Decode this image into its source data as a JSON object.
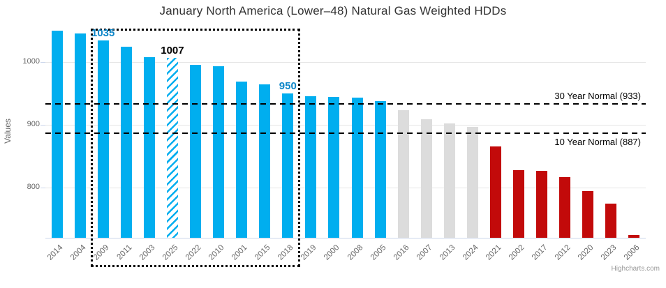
{
  "title": "January North America (Lower–48) Natural Gas Weighted HDDs",
  "credits_label": "Highcharts.com",
  "colors": {
    "bar_blue": "#00aeef",
    "bar_gray": "#dcdcdc",
    "bar_red": "#c20a0a",
    "label_blue": "#0d86c8",
    "label_black": "#000000",
    "gridline": "#e6e6e6",
    "axis_line": "#ccd6eb",
    "plot_line": "#000000"
  },
  "chart_data": {
    "type": "bar",
    "title": "January North America (Lower–48) Natural Gas Weighted HDDs",
    "xlabel": "",
    "ylabel": "Values",
    "ylim": [
      720,
      1060
    ],
    "yticks": [
      800,
      900,
      1000
    ],
    "grid": true,
    "legend": false,
    "categories": [
      "2014",
      "2004",
      "2009",
      "2011",
      "2003",
      "2025",
      "2022",
      "2010",
      "2001",
      "2015",
      "2018",
      "2019",
      "2000",
      "2008",
      "2005",
      "2016",
      "2007",
      "2013",
      "2024",
      "2021",
      "2002",
      "2017",
      "2012",
      "2020",
      "2023",
      "2006"
    ],
    "values": [
      1050,
      1046,
      1035,
      1024,
      1008,
      1007,
      996,
      993,
      969,
      965,
      950,
      946,
      944,
      943,
      938,
      923,
      909,
      902,
      897,
      866,
      828,
      827,
      817,
      794,
      775,
      725
    ],
    "bar_styles": [
      "blue",
      "blue",
      "blue",
      "blue",
      "blue",
      "hatched",
      "blue",
      "blue",
      "blue",
      "blue",
      "blue",
      "blue",
      "blue",
      "blue",
      "blue",
      "gray",
      "gray",
      "gray",
      "gray",
      "red",
      "red",
      "red",
      "red",
      "red",
      "red",
      "red"
    ],
    "data_labels": [
      {
        "category": "2009",
        "text": "1035",
        "color_key": "label_blue"
      },
      {
        "category": "2025",
        "text": "1007",
        "color_key": "label_black"
      },
      {
        "category": "2018",
        "text": "950",
        "color_key": "label_blue"
      }
    ],
    "plot_lines": [
      {
        "value": 933,
        "label": "30 Year Normal (933)",
        "label_position": "above"
      },
      {
        "value": 887,
        "label": "10 Year Normal (887)",
        "label_position": "below"
      }
    ],
    "highlight_box": {
      "from_category": "2009",
      "to_category": "2018"
    }
  }
}
